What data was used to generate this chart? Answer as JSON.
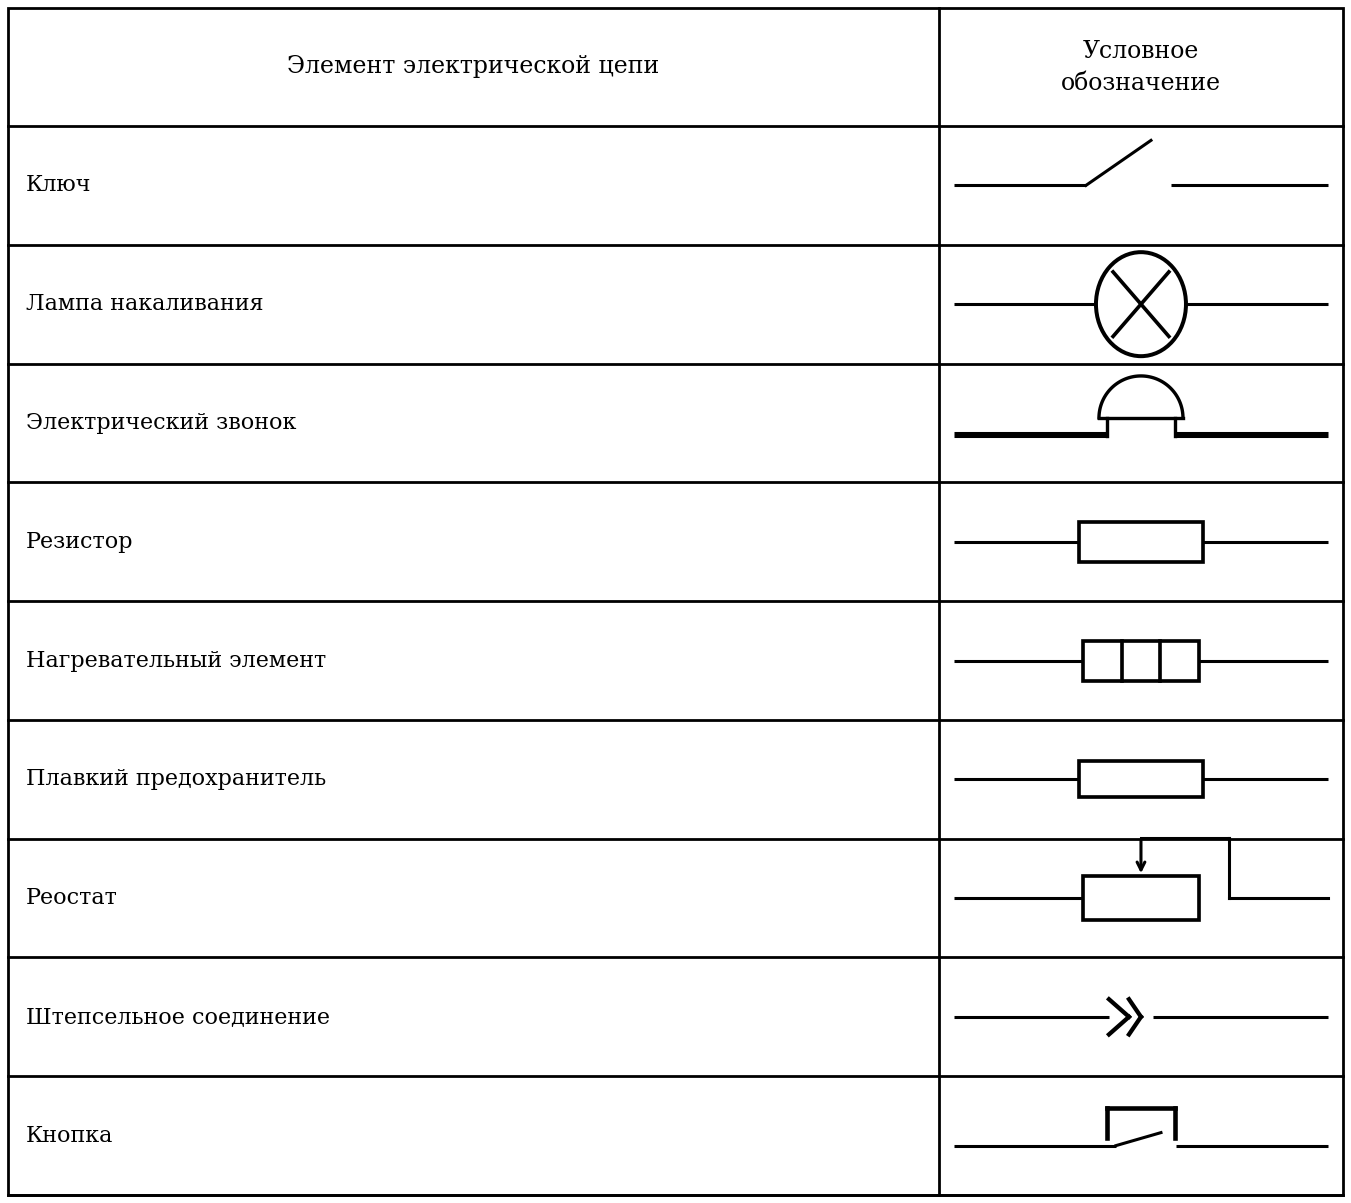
{
  "title_col1": "Элемент электрической цепи",
  "title_col2": "Условное\nобозначение",
  "rows": [
    "Ключ",
    "Лампа накаливания",
    "Электрический звонок",
    "Резистор",
    "Нагревательный элемент",
    "Плавкий предохранитель",
    "Реостат",
    "Штепсельное соединение",
    "Кнопка"
  ],
  "col_split": 0.695,
  "bg_color": "#ffffff",
  "line_color": "#000000",
  "text_color": "#000000",
  "font_size_header": 17,
  "font_size_row": 16,
  "symbol_lw": 2.2
}
